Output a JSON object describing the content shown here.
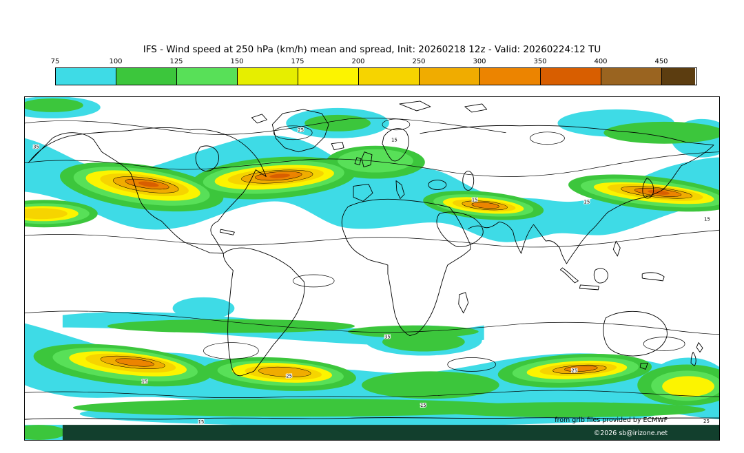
{
  "title": "IFS - Wind speed at 250 hPa (km/h) mean and spread, Init: 20260218 12z - Valid: 20260224:12 TU",
  "colorbar": {
    "tick_labels": [
      "75",
      "100",
      "125",
      "150",
      "175",
      "200",
      "250",
      "300",
      "350",
      "400",
      "450"
    ],
    "segment_colors": [
      "#3edbe6",
      "#3cc63c",
      "#58e058",
      "#e6ee00",
      "#fcf400",
      "#f6d400",
      "#f0ac00",
      "#ec8400",
      "#d85e00",
      "#9a6420",
      "#5c3d10"
    ]
  },
  "map": {
    "contour_labels": [
      "15",
      "25",
      "35"
    ],
    "attribution_ecmwf": "from grib files provided by ECMWF",
    "attribution_copyright": "©2026 sb@irizone.net",
    "band_color": "#123f2d"
  },
  "chart_data": {
    "type": "heatmap",
    "subtype": "filled-contour global weather map",
    "title": "IFS - Wind speed at 250 hPa (km/h) mean and spread, Init: 20260218 12z - Valid: 20260224:12 TU",
    "model": "IFS",
    "variable": "Wind speed at 250 hPa",
    "units": "km/h",
    "statistic": "mean and spread",
    "init_time": "20260218 12z",
    "valid_time": "20260224:12 TU",
    "projection": "global equirectangular (90N-90S, 180W-180E)",
    "legend_position": "top",
    "color_scale_levels": [
      75,
      100,
      125,
      150,
      175,
      200,
      250,
      300,
      350,
      400,
      450
    ],
    "color_scale_colors": [
      "#3edbe6",
      "#3cc63c",
      "#58e058",
      "#e6ee00",
      "#fcf400",
      "#f6d400",
      "#f0ac00",
      "#ec8400",
      "#d85e00",
      "#9a6420",
      "#5c3d10"
    ],
    "spread_contour_levels_kmh": [
      15,
      25,
      35
    ],
    "features": [
      "Northern-hemisphere jet stream band with cores of 250-350 km/h over western North America, the North Atlantic, the Middle East and the NW Pacific/Japan",
      "Southern-hemisphere jet band near 40-60S with cores of 250-300 km/h east of South America, mid South Atlantic/Indian Ocean and south of Australia",
      "Tropics and poles mostly below 75 km/h shown as white",
      "Thin black contour lines depict ensemble spread labelled 15, 25 and 35"
    ],
    "attribution": [
      "from grib files provided by ECMWF",
      "©2026 sb@irizone.net"
    ]
  }
}
